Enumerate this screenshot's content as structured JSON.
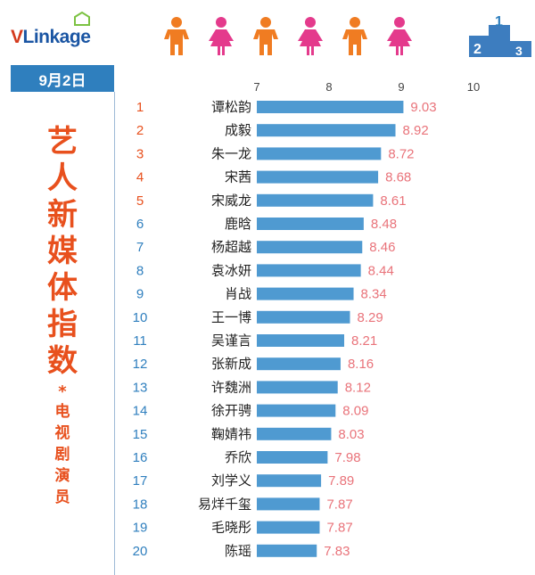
{
  "brand": {
    "logo_v": "V",
    "logo_rest": "Linkage"
  },
  "date": "9月2日",
  "title": {
    "big": [
      "艺",
      "人",
      "新",
      "媒",
      "体",
      "指",
      "数"
    ],
    "star": "*",
    "small": [
      "电",
      "视",
      "剧",
      "演",
      "员"
    ]
  },
  "colors": {
    "bar": "#4f9ad1",
    "value_text": "#e9737a",
    "rank_red": "#e8501d",
    "rank_blue": "#2f7fbe",
    "title": "#e8501d",
    "date_bg": "#2f7fbe",
    "person_orange": "#f07c22",
    "person_pink": "#e43a8c"
  },
  "icons": [
    "person-orange-icon",
    "person-pink-icon",
    "person-orange-icon",
    "person-pink-icon",
    "person-orange-icon",
    "person-pink-icon",
    "podium-icon"
  ],
  "chart_data": {
    "type": "bar",
    "orientation": "horizontal",
    "xlim": [
      7,
      10
    ],
    "xticks": [
      7,
      8,
      9,
      10
    ],
    "grid": false,
    "ranks": [
      1,
      2,
      3,
      4,
      5,
      6,
      7,
      8,
      9,
      10,
      11,
      12,
      13,
      14,
      15,
      16,
      17,
      18,
      19,
      20
    ],
    "categories": [
      "谭松韵",
      "成毅",
      "朱一龙",
      "宋茜",
      "宋威龙",
      "鹿晗",
      "杨超越",
      "袁冰妍",
      "肖战",
      "王一博",
      "吴谨言",
      "张新成",
      "许魏洲",
      "徐开骋",
      "鞠婧祎",
      "乔欣",
      "刘学义",
      "易烊千玺",
      "毛晓彤",
      "陈瑶"
    ],
    "values": [
      9.03,
      8.92,
      8.72,
      8.68,
      8.61,
      8.48,
      8.46,
      8.44,
      8.34,
      8.29,
      8.21,
      8.16,
      8.12,
      8.09,
      8.03,
      7.98,
      7.89,
      7.87,
      7.87,
      7.83
    ]
  }
}
